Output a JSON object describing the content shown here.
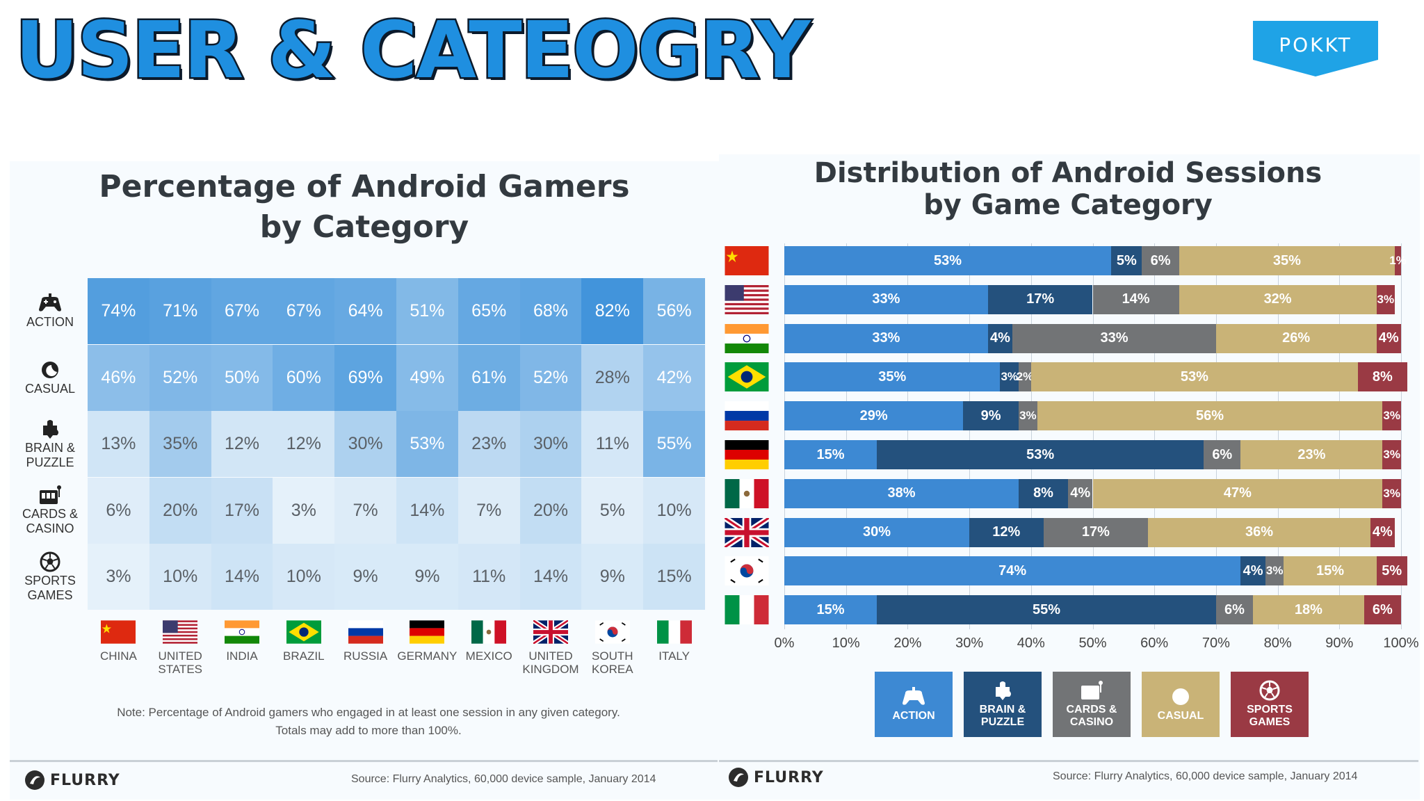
{
  "banner": {
    "title": "USER & CATEOGRY",
    "logo": "POKKT",
    "title_color": "#1f8fe0",
    "logo_color": "#1fa3e6"
  },
  "left": {
    "title_line1": "Percentage of Android Gamers",
    "title_line2": "by Category",
    "note_line1": "Note: Percentage of Android gamers who engaged in at least one session in any given category.",
    "note_line2": "Totals may add to more than 100%.",
    "footer_brand": "FLURRY",
    "source": "Source: Flurry Analytics, 60,000 device sample, January 2014"
  },
  "right": {
    "title_line1": "Distribution of Android Sessions",
    "title_line2": "by Game Category",
    "footer_brand": "FLURRY",
    "source": "Source: Flurry Analytics, 60,000 device sample, January 2014"
  },
  "chart_data": [
    {
      "type": "heatmap",
      "title": "Percentage of Android Gamers by Category",
      "rows": [
        {
          "label": "ACTION",
          "icon": "gamepad-icon",
          "values": [
            74,
            71,
            67,
            67,
            64,
            51,
            65,
            68,
            82,
            56
          ]
        },
        {
          "label": "CASUAL",
          "icon": "moon-icon",
          "values": [
            46,
            52,
            50,
            60,
            69,
            49,
            61,
            52,
            28,
            42
          ]
        },
        {
          "label": "BRAIN & PUZZLE",
          "icon": "brain-icon",
          "values": [
            13,
            35,
            12,
            12,
            30,
            53,
            23,
            30,
            11,
            55
          ]
        },
        {
          "label": "CARDS & CASINO",
          "icon": "slot-machine-icon",
          "values": [
            6,
            20,
            17,
            3,
            7,
            14,
            7,
            20,
            5,
            10
          ]
        },
        {
          "label": "SPORTS GAMES",
          "icon": "soccer-ball-icon",
          "values": [
            3,
            10,
            14,
            10,
            9,
            9,
            11,
            14,
            9,
            15
          ]
        }
      ],
      "columns": [
        {
          "name": "CHINA",
          "flag": "china-flag-icon"
        },
        {
          "name": "UNITED STATES",
          "flag": "usa-flag-icon"
        },
        {
          "name": "INDIA",
          "flag": "india-flag-icon"
        },
        {
          "name": "BRAZIL",
          "flag": "brazil-flag-icon"
        },
        {
          "name": "RUSSIA",
          "flag": "russia-flag-icon"
        },
        {
          "name": "GERMANY",
          "flag": "germany-flag-icon"
        },
        {
          "name": "MEXICO",
          "flag": "mexico-flag-icon"
        },
        {
          "name": "UNITED KINGDOM",
          "flag": "uk-flag-icon"
        },
        {
          "name": "SOUTH KOREA",
          "flag": "south-korea-flag-icon"
        },
        {
          "name": "ITALY",
          "flag": "italy-flag-icon"
        }
      ],
      "unit": "%"
    },
    {
      "type": "bar",
      "orientation": "horizontal",
      "stacked": true,
      "title": "Distribution of Android Sessions by Game Category",
      "categories": [
        "China",
        "United States",
        "India",
        "Brazil",
        "Russia",
        "Germany",
        "Mexico",
        "United Kingdom",
        "South Korea",
        "Italy"
      ],
      "category_flags": [
        "china-flag-icon",
        "usa-flag-icon",
        "india-flag-icon",
        "brazil-flag-icon",
        "russia-flag-icon",
        "germany-flag-icon",
        "mexico-flag-icon",
        "uk-flag-icon",
        "south-korea-flag-icon",
        "italy-flag-icon"
      ],
      "series": [
        {
          "name": "ACTION",
          "color": "#3d89d3",
          "values": [
            53,
            33,
            33,
            35,
            29,
            15,
            38,
            30,
            74,
            15
          ]
        },
        {
          "name": "BRAIN & PUZZLE",
          "color": "#24517d",
          "values": [
            5,
            17,
            4,
            3,
            9,
            53,
            8,
            12,
            4,
            55
          ]
        },
        {
          "name": "CARDS & CASINO",
          "color": "#727476",
          "values": [
            6,
            14,
            33,
            2,
            3,
            6,
            4,
            17,
            3,
            6
          ]
        },
        {
          "name": "CASUAL",
          "color": "#c9b377",
          "values": [
            35,
            32,
            26,
            53,
            56,
            23,
            47,
            36,
            15,
            18
          ]
        },
        {
          "name": "SPORTS GAMES",
          "color": "#9a3a44",
          "values": [
            1,
            3,
            4,
            8,
            3,
            3,
            3,
            4,
            5,
            6
          ]
        }
      ],
      "xlim": [
        0,
        100
      ],
      "xticks": [
        "0%",
        "10%",
        "20%",
        "30%",
        "40%",
        "50%",
        "60%",
        "70%",
        "80%",
        "90%",
        "100%"
      ],
      "legend": [
        {
          "label": "ACTION",
          "icon": "gamepad-icon"
        },
        {
          "label": "BRAIN & PUZZLE",
          "icon": "brain-icon"
        },
        {
          "label": "CARDS & CASINO",
          "icon": "slot-machine-icon"
        },
        {
          "label": "CASUAL",
          "icon": "moon-icon"
        },
        {
          "label": "SPORTS GAMES",
          "icon": "soccer-ball-icon"
        }
      ],
      "legend_placement": "bottom"
    }
  ]
}
